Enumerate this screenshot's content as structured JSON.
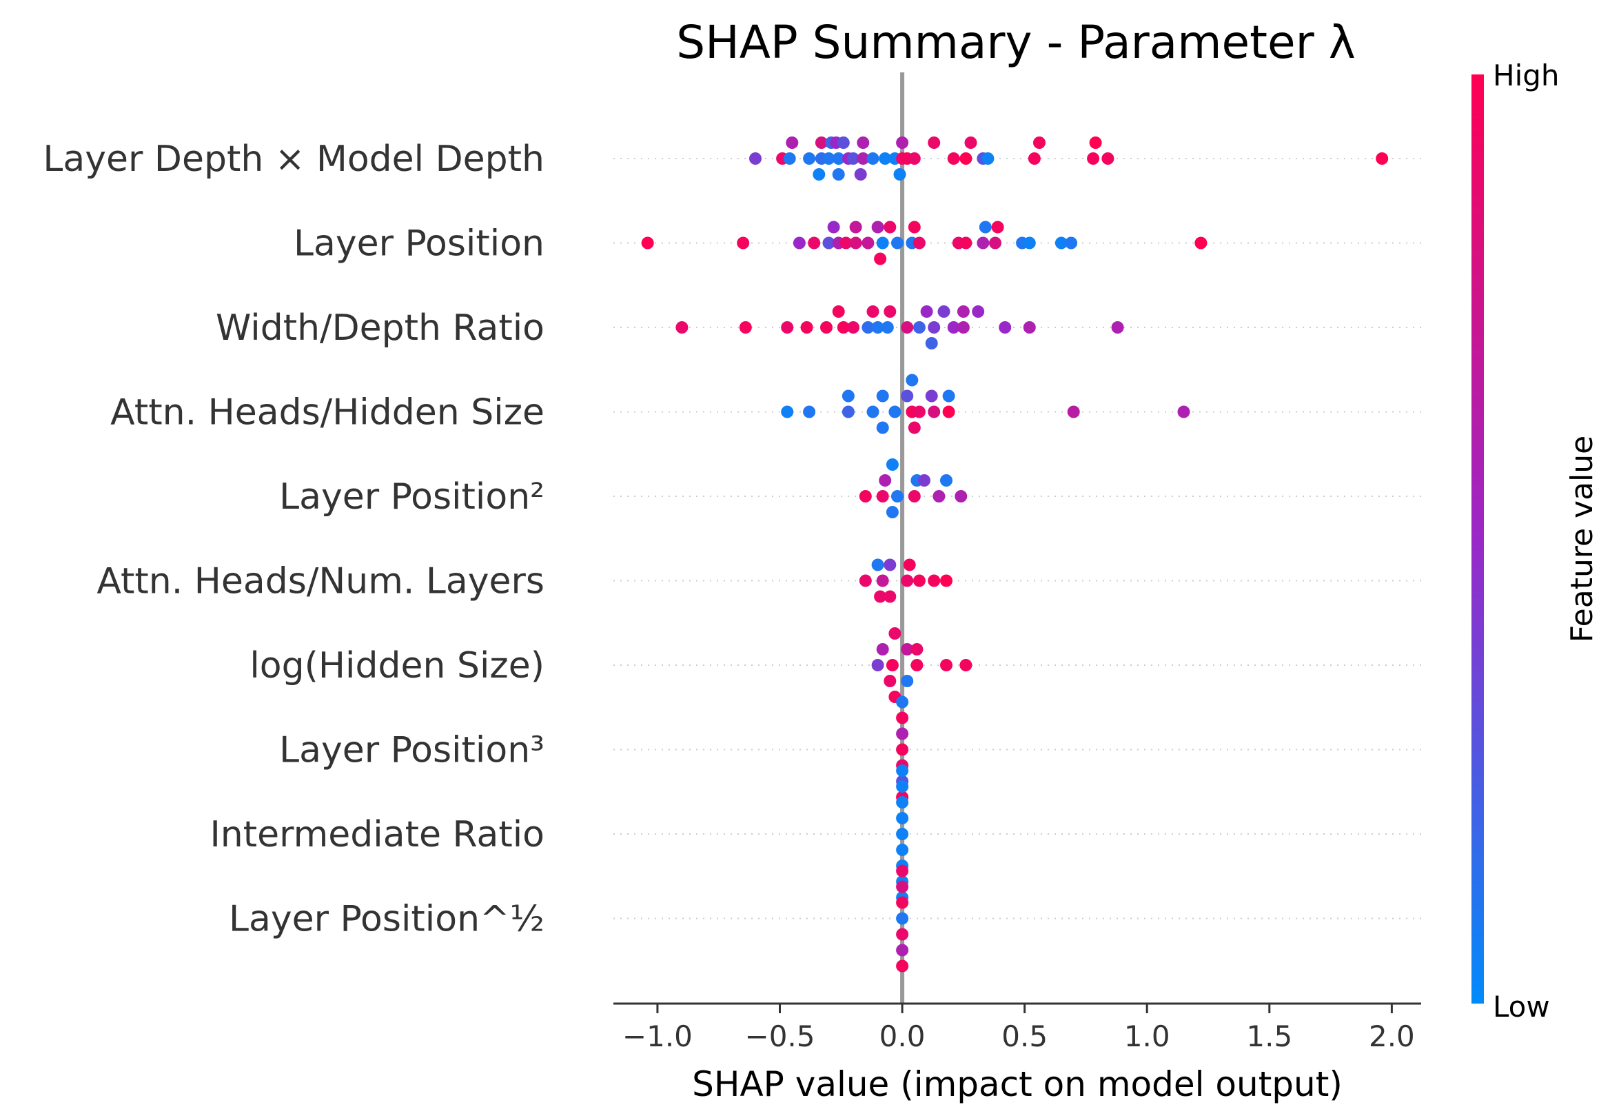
{
  "chart_data": {
    "type": "scatter",
    "title": "SHAP Summary - Parameter λ",
    "xlabel": "SHAP value (impact on model output)",
    "xlim": [
      -1.18,
      2.12
    ],
    "xticks": [
      -1.0,
      -0.5,
      0.0,
      0.5,
      1.0,
      1.5,
      2.0
    ],
    "xtick_labels": [
      "−1.0",
      "−0.5",
      "0.0",
      "0.5",
      "1.0",
      "1.5",
      "2.0"
    ],
    "colorbar": {
      "label": "Feature value",
      "high": "High",
      "low": "Low",
      "low_color": "#008bfb",
      "mid_color": "#9a28c8",
      "high_color": "#ff0052"
    },
    "features": [
      {
        "name": "Layer Depth × Model Depth",
        "points": [
          [
            -0.45,
            1,
            0.6
          ],
          [
            -0.33,
            1,
            0.8
          ],
          [
            -0.29,
            1,
            0.2
          ],
          [
            -0.27,
            1,
            0.5
          ],
          [
            -0.24,
            1,
            0.3
          ],
          [
            -0.16,
            1,
            0.6
          ],
          [
            0.0,
            1,
            0.6
          ],
          [
            0.13,
            1,
            0.9
          ],
          [
            0.28,
            1,
            0.9
          ],
          [
            0.56,
            1,
            0.95
          ],
          [
            0.79,
            1,
            1.0
          ],
          [
            -0.6,
            0,
            0.4
          ],
          [
            -0.49,
            0,
            0.9
          ],
          [
            -0.46,
            0,
            0.1
          ],
          [
            -0.38,
            0,
            0.1
          ],
          [
            -0.33,
            0,
            0.15
          ],
          [
            -0.3,
            0,
            0.1
          ],
          [
            -0.26,
            0,
            0.1
          ],
          [
            -0.22,
            0,
            0.5
          ],
          [
            -0.2,
            0,
            0.3
          ],
          [
            -0.16,
            0,
            0.6
          ],
          [
            -0.12,
            0,
            0.1
          ],
          [
            -0.07,
            0,
            0.05
          ],
          [
            -0.03,
            0,
            0.05
          ],
          [
            0.0,
            0,
            0.9
          ],
          [
            0.02,
            0,
            0.95
          ],
          [
            0.05,
            0,
            0.9
          ],
          [
            0.21,
            0,
            0.95
          ],
          [
            0.26,
            0,
            1.0
          ],
          [
            0.33,
            0,
            0.3
          ],
          [
            0.35,
            0,
            0.05
          ],
          [
            0.54,
            0,
            0.95
          ],
          [
            0.78,
            0,
            0.95
          ],
          [
            0.84,
            0,
            0.95
          ],
          [
            1.96,
            0,
            1.0
          ],
          [
            -0.34,
            -1,
            0.05
          ],
          [
            -0.26,
            -1,
            0.1
          ],
          [
            -0.17,
            -1,
            0.4
          ],
          [
            -0.01,
            -1,
            0.05
          ]
        ]
      },
      {
        "name": "Layer Position",
        "points": [
          [
            -0.28,
            1,
            0.5
          ],
          [
            -0.19,
            1,
            0.7
          ],
          [
            -0.1,
            1,
            0.6
          ],
          [
            -0.05,
            1,
            0.9
          ],
          [
            0.05,
            1,
            0.95
          ],
          [
            0.34,
            1,
            0.1
          ],
          [
            0.39,
            1,
            0.95
          ],
          [
            -1.04,
            0,
            1.0
          ],
          [
            -0.65,
            0,
            0.95
          ],
          [
            -0.42,
            0,
            0.5
          ],
          [
            -0.36,
            0,
            0.9
          ],
          [
            -0.3,
            0,
            0.3
          ],
          [
            -0.26,
            0,
            0.6
          ],
          [
            -0.23,
            0,
            0.9
          ],
          [
            -0.19,
            0,
            0.8
          ],
          [
            -0.14,
            0,
            0.7
          ],
          [
            -0.08,
            0,
            0.05
          ],
          [
            -0.02,
            0,
            0.1
          ],
          [
            0.04,
            0,
            0.1
          ],
          [
            0.07,
            0,
            0.9
          ],
          [
            0.23,
            0,
            0.9
          ],
          [
            0.26,
            0,
            0.95
          ],
          [
            0.33,
            0,
            0.6
          ],
          [
            0.38,
            0,
            0.8
          ],
          [
            0.49,
            0,
            0.1
          ],
          [
            0.52,
            0,
            0.05
          ],
          [
            0.65,
            0,
            0.05
          ],
          [
            0.69,
            0,
            0.1
          ],
          [
            1.22,
            0,
            1.0
          ],
          [
            -0.09,
            -1,
            0.95
          ]
        ]
      },
      {
        "name": "Width/Depth Ratio",
        "points": [
          [
            -0.26,
            1,
            0.95
          ],
          [
            -0.12,
            1,
            0.9
          ],
          [
            -0.05,
            1,
            0.9
          ],
          [
            0.1,
            1,
            0.5
          ],
          [
            0.17,
            1,
            0.4
          ],
          [
            0.25,
            1,
            0.6
          ],
          [
            0.31,
            1,
            0.5
          ],
          [
            -0.9,
            0,
            0.9
          ],
          [
            -0.64,
            0,
            0.95
          ],
          [
            -0.47,
            0,
            0.9
          ],
          [
            -0.39,
            0,
            0.95
          ],
          [
            -0.31,
            0,
            0.95
          ],
          [
            -0.24,
            0,
            0.95
          ],
          [
            -0.2,
            0,
            0.9
          ],
          [
            -0.14,
            0,
            0.15
          ],
          [
            -0.1,
            0,
            0.1
          ],
          [
            -0.06,
            0,
            0.1
          ],
          [
            0.02,
            0,
            0.8
          ],
          [
            0.07,
            0,
            0.2
          ],
          [
            0.13,
            0,
            0.4
          ],
          [
            0.21,
            0,
            0.5
          ],
          [
            0.25,
            0,
            0.6
          ],
          [
            0.42,
            0,
            0.5
          ],
          [
            0.52,
            0,
            0.6
          ],
          [
            0.88,
            0,
            0.6
          ],
          [
            0.12,
            -1,
            0.2
          ]
        ]
      },
      {
        "name": "Attn. Heads/Hidden Size",
        "points": [
          [
            0.04,
            2,
            0.1
          ],
          [
            -0.22,
            1,
            0.1
          ],
          [
            -0.08,
            1,
            0.1
          ],
          [
            0.02,
            1,
            0.3
          ],
          [
            0.12,
            1,
            0.4
          ],
          [
            0.19,
            1,
            0.1
          ],
          [
            -0.47,
            0,
            0.05
          ],
          [
            -0.38,
            0,
            0.1
          ],
          [
            -0.22,
            0,
            0.2
          ],
          [
            -0.12,
            0,
            0.1
          ],
          [
            -0.03,
            0,
            0.1
          ],
          [
            0.04,
            0,
            0.95
          ],
          [
            0.07,
            0,
            0.9
          ],
          [
            0.13,
            0,
            0.8
          ],
          [
            0.19,
            0,
            1.0
          ],
          [
            0.7,
            0,
            0.65
          ],
          [
            1.15,
            0,
            0.6
          ],
          [
            -0.08,
            -1,
            0.1
          ],
          [
            0.05,
            -1,
            0.9
          ]
        ]
      },
      {
        "name": "Layer Position²",
        "points": [
          [
            -0.04,
            2,
            0.05
          ],
          [
            -0.07,
            1,
            0.6
          ],
          [
            0.06,
            1,
            0.1
          ],
          [
            0.09,
            1,
            0.4
          ],
          [
            0.18,
            1,
            0.1
          ],
          [
            -0.15,
            0,
            0.95
          ],
          [
            -0.08,
            0,
            0.9
          ],
          [
            -0.02,
            0,
            0.1
          ],
          [
            0.05,
            0,
            0.9
          ],
          [
            0.15,
            0,
            0.6
          ],
          [
            0.24,
            0,
            0.6
          ],
          [
            -0.04,
            -1,
            0.1
          ]
        ]
      },
      {
        "name": "Attn. Heads/Num. Layers",
        "points": [
          [
            -0.1,
            1,
            0.1
          ],
          [
            -0.05,
            1,
            0.4
          ],
          [
            0.03,
            1,
            0.95
          ],
          [
            -0.15,
            0,
            0.9
          ],
          [
            -0.08,
            0,
            0.7
          ],
          [
            0.02,
            0,
            0.9
          ],
          [
            0.07,
            0,
            0.95
          ],
          [
            0.13,
            0,
            0.95
          ],
          [
            0.18,
            0,
            1.0
          ],
          [
            -0.09,
            -1,
            0.9
          ],
          [
            -0.05,
            -1,
            0.9
          ]
        ]
      },
      {
        "name": "log(Hidden Size)",
        "points": [
          [
            -0.03,
            2,
            0.9
          ],
          [
            -0.08,
            1,
            0.6
          ],
          [
            0.02,
            1,
            0.7
          ],
          [
            0.06,
            1,
            0.9
          ],
          [
            -0.1,
            0,
            0.4
          ],
          [
            -0.04,
            0,
            0.95
          ],
          [
            0.06,
            0,
            0.95
          ],
          [
            0.18,
            0,
            0.95
          ],
          [
            0.26,
            0,
            0.95
          ],
          [
            -0.05,
            -1,
            0.9
          ],
          [
            0.02,
            -1,
            0.1
          ],
          [
            -0.03,
            -2,
            0.95
          ]
        ]
      },
      {
        "name": "Layer Position³",
        "points": [
          [
            0.0,
            3,
            0.1
          ],
          [
            0.0,
            2,
            0.95
          ],
          [
            0.0,
            1,
            0.6
          ],
          [
            0.0,
            0,
            0.95
          ],
          [
            0.0,
            -1,
            0.9
          ],
          [
            0.0,
            -2,
            0.3
          ],
          [
            0.0,
            -3,
            0.95
          ]
        ]
      },
      {
        "name": "Intermediate Ratio",
        "points": [
          [
            0.0,
            4,
            0.05
          ],
          [
            0.0,
            3,
            0.05
          ],
          [
            0.0,
            2,
            0.05
          ],
          [
            0.0,
            1,
            0.05
          ],
          [
            0.0,
            0,
            0.05
          ],
          [
            0.0,
            -1,
            0.05
          ],
          [
            0.0,
            -2,
            0.05
          ],
          [
            0.0,
            -3,
            0.05
          ],
          [
            0.0,
            -4,
            0.05
          ]
        ]
      },
      {
        "name": "Layer Position^½",
        "points": [
          [
            0.0,
            3,
            0.9
          ],
          [
            0.0,
            2,
            0.8
          ],
          [
            0.0,
            1,
            0.95
          ],
          [
            0.0,
            0,
            0.1
          ],
          [
            0.0,
            -1,
            0.9
          ],
          [
            0.0,
            -2,
            0.6
          ],
          [
            0.0,
            -3,
            0.95
          ]
        ]
      }
    ]
  }
}
